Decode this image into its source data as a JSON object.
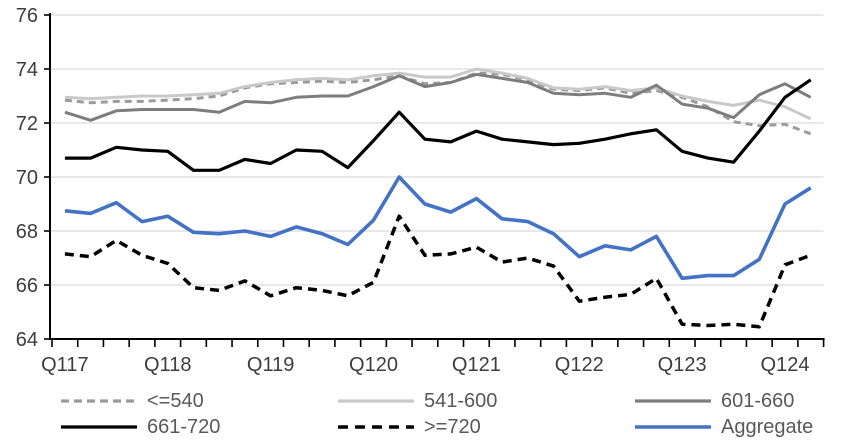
{
  "chart_data": {
    "type": "line",
    "title": "",
    "xlabel": "",
    "ylabel": "",
    "grid": true,
    "legend_position": "bottom",
    "ylim": [
      64,
      76
    ],
    "y_ticks": [
      64,
      66,
      68,
      70,
      72,
      74,
      76
    ],
    "x_tick_labels": [
      "Q117",
      "Q118",
      "Q119",
      "Q120",
      "Q121",
      "Q122",
      "Q123",
      "Q124"
    ],
    "x_tick_indices": [
      0,
      4,
      8,
      12,
      16,
      20,
      24,
      28
    ],
    "categories": [
      "Q117",
      "Q217",
      "Q317",
      "Q417",
      "Q118",
      "Q218",
      "Q318",
      "Q418",
      "Q119",
      "Q219",
      "Q319",
      "Q419",
      "Q120",
      "Q220",
      "Q320",
      "Q420",
      "Q121",
      "Q221",
      "Q321",
      "Q421",
      "Q122",
      "Q222",
      "Q322",
      "Q422",
      "Q123",
      "Q223",
      "Q323",
      "Q423",
      "Q124",
      "Q224"
    ],
    "series": [
      {
        "name": "<=540",
        "color": "#9b9b9b",
        "dash": "7 5",
        "width": 3,
        "values": [
          72.85,
          72.75,
          72.8,
          72.8,
          72.85,
          72.9,
          73.0,
          73.3,
          73.45,
          73.5,
          73.55,
          73.5,
          73.6,
          73.75,
          73.45,
          73.5,
          73.85,
          73.8,
          73.6,
          73.25,
          73.2,
          73.3,
          73.1,
          73.2,
          72.95,
          72.6,
          72.05,
          71.9,
          71.95,
          71.6
        ]
      },
      {
        "name": "541-600",
        "color": "#c9c9c9",
        "dash": "",
        "width": 3,
        "values": [
          72.95,
          72.9,
          72.95,
          73.0,
          73.0,
          73.05,
          73.1,
          73.35,
          73.5,
          73.6,
          73.65,
          73.6,
          73.75,
          73.85,
          73.7,
          73.7,
          74.0,
          73.85,
          73.65,
          73.3,
          73.25,
          73.35,
          73.2,
          73.3,
          73.0,
          72.8,
          72.65,
          72.85,
          72.6,
          72.15
        ]
      },
      {
        "name": "601-660",
        "color": "#7d7d7d",
        "dash": "",
        "width": 3,
        "values": [
          72.4,
          72.1,
          72.45,
          72.5,
          72.5,
          72.5,
          72.4,
          72.8,
          72.75,
          72.95,
          73.0,
          73.0,
          73.35,
          73.75,
          73.35,
          73.5,
          73.8,
          73.65,
          73.5,
          73.1,
          73.05,
          73.1,
          72.95,
          73.4,
          72.7,
          72.55,
          72.2,
          73.05,
          73.45,
          72.95
        ]
      },
      {
        "name": "661-720",
        "color": "#000000",
        "dash": "",
        "width": 3.2,
        "values": [
          70.7,
          70.7,
          71.1,
          71.0,
          70.95,
          70.25,
          70.25,
          70.65,
          70.5,
          71.0,
          70.95,
          70.35,
          71.35,
          72.4,
          71.4,
          71.3,
          71.7,
          71.4,
          71.3,
          71.2,
          71.25,
          71.4,
          71.6,
          71.75,
          70.95,
          70.7,
          70.55,
          71.7,
          72.95,
          73.6
        ]
      },
      {
        "name": ">=720",
        "color": "#000000",
        "dash": "9 6",
        "width": 3.5,
        "values": [
          67.15,
          67.05,
          67.65,
          67.1,
          66.8,
          65.9,
          65.8,
          66.15,
          65.6,
          65.9,
          65.8,
          65.6,
          66.1,
          68.55,
          67.1,
          67.15,
          67.4,
          66.85,
          67.0,
          66.7,
          65.4,
          65.55,
          65.65,
          66.25,
          64.55,
          64.5,
          64.55,
          64.45,
          66.75,
          67.1
        ]
      },
      {
        "name": "Aggregate",
        "color": "#4472c4",
        "dash": "",
        "width": 3.6,
        "values": [
          68.75,
          68.65,
          69.05,
          68.35,
          68.55,
          67.95,
          67.9,
          68.0,
          67.8,
          68.15,
          67.9,
          67.5,
          68.4,
          70.0,
          69.0,
          68.7,
          69.2,
          68.45,
          68.35,
          67.9,
          67.05,
          67.45,
          67.3,
          67.8,
          66.25,
          66.35,
          66.35,
          66.95,
          69.0,
          69.6
        ]
      }
    ],
    "style": {
      "gridline_color": "#d9d9d9",
      "axis_color": "#000000",
      "accent_blue": "#4472c4"
    }
  },
  "legend": {
    "items": [
      {
        "label": "<=540"
      },
      {
        "label": "541-600"
      },
      {
        "label": "601-660"
      },
      {
        "label": "661-720"
      },
      {
        "label": ">=720"
      },
      {
        "label": "Aggregate"
      }
    ]
  }
}
